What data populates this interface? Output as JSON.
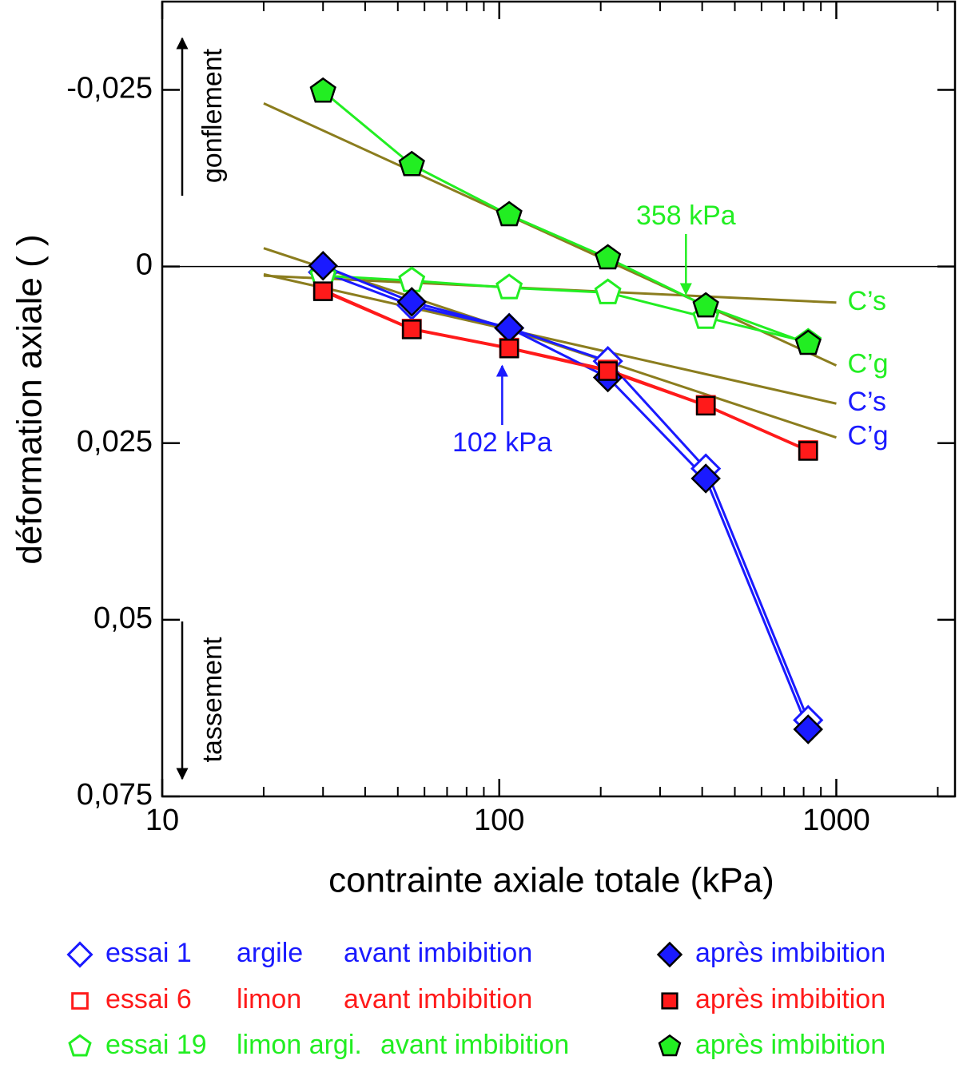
{
  "chart_data": {
    "type": "line",
    "xlabel": "contrainte axiale totale (kPa)",
    "ylabel": "déformation axiale ( )",
    "xscale": "log",
    "xlim": [
      10,
      2250
    ],
    "xticks": [
      10,
      100,
      1000
    ],
    "xminor_ticks": [
      20,
      30,
      40,
      50,
      60,
      70,
      80,
      90,
      200,
      300,
      400,
      500,
      600,
      700,
      800,
      900,
      2000
    ],
    "ylim": [
      -0.0375,
      0.075
    ],
    "y_inverted": true,
    "yticks": [
      {
        "value": -0.025,
        "label": "-0,025"
      },
      0,
      {
        "value": 0.025,
        "label": "0,025"
      },
      {
        "value": 0.05,
        "label": "0,05"
      },
      {
        "value": 0.075,
        "label": "0,075"
      }
    ],
    "zero_line": true,
    "x": [
      30,
      55,
      107,
      210,
      410,
      825
    ],
    "series": [
      {
        "name": "avant imbibition",
        "test": "essai 1",
        "material": "argile",
        "color": "#1a1aff",
        "marker": "diamond",
        "filled": false,
        "values": [
          0.0008,
          0.0055,
          0.0087,
          0.0134,
          0.0286,
          0.0642
        ]
      },
      {
        "name": "avant imbibition",
        "test": "essai 6",
        "material": "limon",
        "color": "#ff1a1a",
        "marker": "square",
        "filled": false,
        "values": [
          0.0033,
          0.0088,
          0.0115,
          0.0146,
          0.0196,
          0.026
        ]
      },
      {
        "name": "avant imbibition",
        "test": "essai 19",
        "material": "limon argi.",
        "color": "#22ee22",
        "marker": "pentagon",
        "filled": false,
        "values": [
          0.0013,
          0.002,
          0.003,
          0.0037,
          0.0072,
          0.0107
        ]
      },
      {
        "name": "après imbibition",
        "color": "#1a1aff",
        "marker": "diamond",
        "filled": true,
        "values": [
          -0.0001,
          0.005,
          0.0087,
          0.0157,
          0.03,
          0.0655
        ]
      },
      {
        "name": "après imbibition",
        "color": "#ff1a1a",
        "marker": "square",
        "filled": true,
        "values": [
          0.0035,
          0.0089,
          0.0116,
          0.0148,
          0.0197,
          0.0261
        ]
      },
      {
        "name": "après imbibition",
        "color": "#22ee22",
        "marker": "pentagon",
        "filled": true,
        "values": [
          -0.0248,
          -0.0144,
          -0.0073,
          -0.0012,
          0.0056,
          0.0109
        ]
      }
    ],
    "fit_lines": [
      {
        "label": "C’s",
        "color": "#8b7d1e",
        "label_color": "#22ee22",
        "x": [
          20,
          1000
        ],
        "values": [
          0.0013,
          0.0051
        ]
      },
      {
        "label": "C’g",
        "color": "#8b7d1e",
        "label_color": "#22ee22",
        "x": [
          20,
          1000
        ],
        "values": [
          -0.0231,
          0.014
        ]
      },
      {
        "label": "C’s",
        "color": "#8b7d1e",
        "label_color": "#1a1aff",
        "x": [
          20,
          1000
        ],
        "values": [
          0.0011,
          0.0194
        ]
      },
      {
        "label": "C’g",
        "color": "#8b7d1e",
        "label_color": "#1a1aff",
        "x": [
          20,
          1000
        ],
        "values": [
          -0.0026,
          0.0242
        ]
      }
    ],
    "annotations": [
      {
        "text": "358 kPa",
        "x": 358,
        "color": "#22ee22",
        "direction": "down"
      },
      {
        "text": "102 kPa",
        "x": 102,
        "color": "#1a1aff",
        "direction": "up"
      },
      {
        "text": "gonflement",
        "direction": "up"
      },
      {
        "text": "tassement",
        "direction": "down"
      }
    ]
  }
}
